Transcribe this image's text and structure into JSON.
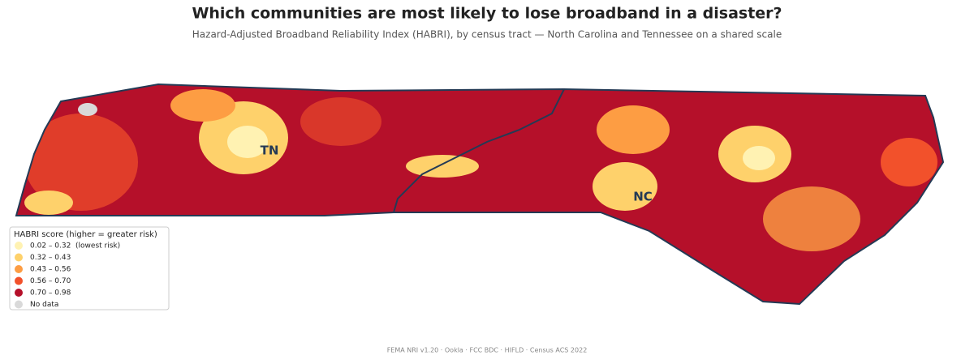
{
  "title": "Which communities are most likely to lose broadband in a disaster?",
  "subtitle": "Hazard-Adjusted Broadband Reliability Index (HABRI), by census tract — North Carolina and Tennessee on a shared scale",
  "state_labels": [
    "TN",
    "NC"
  ],
  "legend": {
    "title": "HABRI score (higher = greater risk)",
    "items": [
      {
        "label": "0.02 – 0.32  (lowest risk)",
        "color": "#fff2b2"
      },
      {
        "label": "0.32 – 0.43",
        "color": "#fed16b"
      },
      {
        "label": "0.43 – 0.56",
        "color": "#fd9d43"
      },
      {
        "label": "0.56 – 0.70",
        "color": "#f2512b"
      },
      {
        "label": "0.70 – 0.98",
        "color": "#b5102a"
      },
      {
        "label": "No data",
        "color": "#d9d9d9"
      }
    ]
  },
  "source": "FEMA NRI v1.20 · Ookla · FCC BDC · HIFLD · Census ACS 2022"
}
